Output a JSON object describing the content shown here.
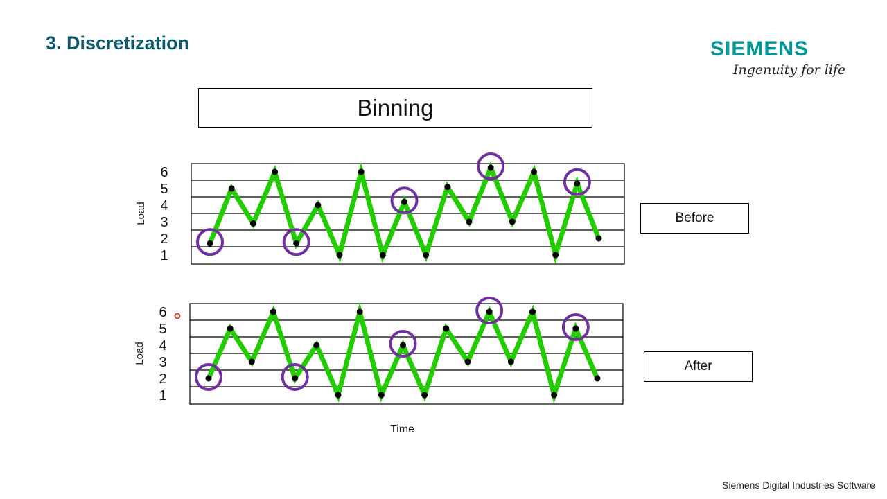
{
  "slide": {
    "title": "3. Discretization",
    "logo": "SIEMENS",
    "tagline": "Ingenuity for life",
    "footer": "Siemens Digital Industries Software",
    "heading": "Binning",
    "before_label": "Before",
    "after_label": "After"
  },
  "colors": {
    "line": "#22cc00",
    "circle": "#7030a0",
    "point": "#000000",
    "title": "#0b5a6e",
    "logo": "#009999"
  },
  "chart_data": [
    {
      "type": "line",
      "title": "Before",
      "xlabel": "",
      "ylabel": "Load",
      "yticks": [
        "1",
        "2",
        "3",
        "4",
        "5",
        "6"
      ],
      "ylim": [
        0.5,
        6.5
      ],
      "grid": true,
      "values": [
        1.7,
        5,
        2.9,
        6,
        1.7,
        4,
        1,
        6,
        1,
        4.2,
        1,
        5.1,
        3,
        6.25,
        3,
        6,
        1,
        5.3,
        2
      ],
      "highlighted_indices": [
        0,
        4,
        9,
        13,
        17
      ]
    },
    {
      "type": "line",
      "title": "After",
      "xlabel": "Time",
      "ylabel": "Load",
      "yticks": [
        "1",
        "2",
        "3",
        "4",
        "5",
        "6"
      ],
      "ylim": [
        0.5,
        6.5
      ],
      "grid": true,
      "values": [
        2,
        5,
        3,
        6,
        2,
        4,
        1,
        6,
        1,
        4,
        1,
        5,
        3,
        6,
        3,
        6,
        1,
        5,
        2
      ],
      "highlighted_indices": [
        0,
        4,
        9,
        13,
        17
      ]
    }
  ]
}
